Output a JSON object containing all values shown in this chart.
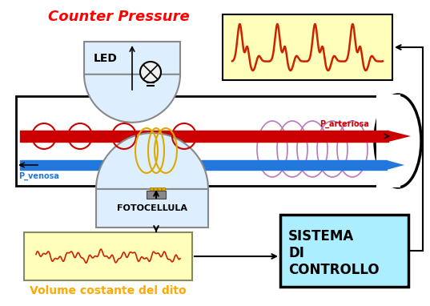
{
  "bg_color": "#ffffff",
  "counter_pressure_text": "Counter Pressure",
  "counter_pressure_color": "#ff0000",
  "led_text": "LED",
  "fotocellula_text": "FOTOCELLULA",
  "p_arteriosa_text": "P_arteriosa",
  "p_venosa_text": "P_venosa",
  "volume_text": "Volume costante del dito",
  "volume_color": "#ffaa00",
  "sistema_text": "SISTEMA\nDI\nCONTROLLO",
  "yellow_bg": "#ffffbb",
  "light_blue_bg": "#aaeeff",
  "artery_color": "#cc0000",
  "vein_color": "#2277dd",
  "oval_color": "#ddaa00",
  "purple_color": "#bb77bb",
  "red_wave_color": "#cc2200",
  "led_box_bg": "#ddeeff"
}
